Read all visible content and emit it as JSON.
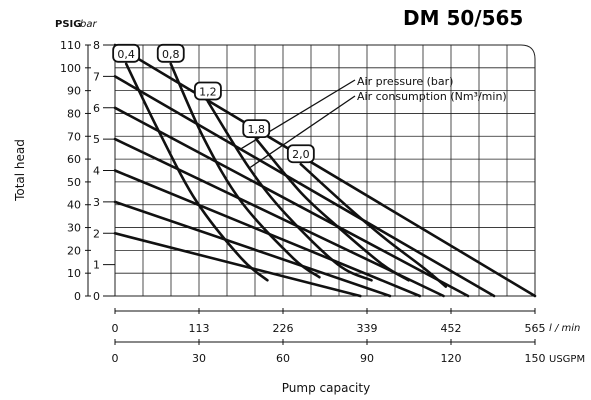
{
  "chart_data": {
    "type": "line",
    "title": "DM 50/565",
    "ylabel": "Total head",
    "xlabel": "Pump capacity",
    "psig_unit": "PSIG",
    "bar_unit": "bar",
    "lmin_unit": "l / min",
    "usgpm_unit": "USGPM",
    "psig_ticks": [
      "110",
      "100",
      "90",
      "80",
      "70",
      "60",
      "50",
      "40",
      "30",
      "20",
      "10",
      "0"
    ],
    "psig_values": [
      110,
      100,
      90,
      80,
      70,
      60,
      50,
      40,
      30,
      20,
      10,
      0
    ],
    "bar_ticks": [
      "8",
      "7",
      "6",
      "5",
      "4",
      "3",
      "2",
      "1",
      "0"
    ],
    "bar_values": [
      8,
      7,
      6,
      5,
      4,
      3,
      2,
      1,
      0
    ],
    "lmin_ticks": [
      "0",
      "113",
      "226",
      "339",
      "452",
      "565"
    ],
    "lmin_values": [
      0,
      113,
      226,
      339,
      452,
      565
    ],
    "usgpm_ticks": [
      "0",
      "30",
      "60",
      "90",
      "120",
      "150"
    ],
    "usgpm_values": [
      0,
      30,
      60,
      90,
      120,
      150
    ],
    "xlim": [
      0,
      565
    ],
    "ylim": [
      0,
      8
    ],
    "grid": true,
    "legend": [
      "Air pressure (bar)",
      "Air consumption (Nm³/min)"
    ],
    "pressure_curves": [
      {
        "points": [
          [
            0,
            8.0
          ],
          [
            565,
            0.0
          ]
        ]
      },
      {
        "points": [
          [
            0,
            7.0
          ],
          [
            510,
            0.0
          ]
        ]
      },
      {
        "points": [
          [
            0,
            6.0
          ],
          [
            475,
            0.0
          ]
        ]
      },
      {
        "points": [
          [
            0,
            5.0
          ],
          [
            442,
            0.0
          ]
        ]
      },
      {
        "points": [
          [
            0,
            4.0
          ],
          [
            410,
            0.0
          ]
        ]
      },
      {
        "points": [
          [
            0,
            3.0
          ],
          [
            370,
            0.0
          ]
        ]
      },
      {
        "points": [
          [
            0,
            2.0
          ],
          [
            330,
            0.0
          ]
        ]
      }
    ],
    "consumption_curves": [
      {
        "label": "0,4",
        "points": [
          [
            15,
            7.4
          ],
          [
            60,
            5.2
          ],
          [
            110,
            3.0
          ],
          [
            170,
            1.2
          ],
          [
            205,
            0.5
          ]
        ]
      },
      {
        "label": "0,8",
        "points": [
          [
            75,
            7.4
          ],
          [
            120,
            5.0
          ],
          [
            170,
            3.0
          ],
          [
            240,
            1.2
          ],
          [
            275,
            0.6
          ]
        ]
      },
      {
        "label": "1,2",
        "points": [
          [
            125,
            6.2
          ],
          [
            180,
            4.1
          ],
          [
            230,
            2.6
          ],
          [
            300,
            1.0
          ],
          [
            345,
            0.5
          ]
        ]
      },
      {
        "label": "1,8",
        "points": [
          [
            190,
            5.0
          ],
          [
            250,
            3.3
          ],
          [
            300,
            2.2
          ],
          [
            360,
            1.0
          ],
          [
            395,
            0.5
          ]
        ]
      },
      {
        "label": "2,0",
        "points": [
          [
            250,
            4.2
          ],
          [
            315,
            2.8
          ],
          [
            365,
            1.8
          ],
          [
            415,
            0.9
          ],
          [
            445,
            0.3
          ]
        ]
      }
    ]
  }
}
